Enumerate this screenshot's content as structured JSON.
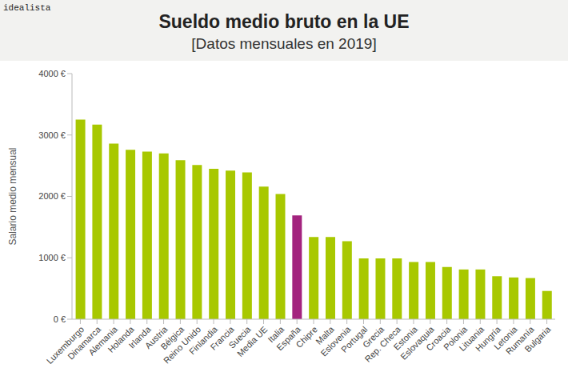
{
  "chart_data": {
    "type": "bar",
    "source": "idealista",
    "title": "Sueldo medio bruto en la UE",
    "subtitle": "[Datos mensuales en 2019]",
    "y_label": "Salario medio mensual",
    "categories": [
      "Luxemburgo",
      "Dinamarca",
      "Alemania",
      "Holanda",
      "Irlanda",
      "Austria",
      "Bélgica",
      "Reino Unido",
      "Finlandia",
      "Francia",
      "Suecia",
      "Media UE",
      "Italia",
      "España",
      "Chipre",
      "Malta",
      "Eslovenia",
      "Portugal",
      "Grecia",
      "Rep. Checa",
      "Estonia",
      "Eslovaquia",
      "Croacia",
      "Polonia",
      "Lituania",
      "Hungría",
      "Letonia",
      "Rumanía",
      "Bulgaria"
    ],
    "values": [
      3250,
      3170,
      2860,
      2760,
      2730,
      2700,
      2590,
      2510,
      2450,
      2420,
      2390,
      2160,
      2040,
      1690,
      1340,
      1340,
      1270,
      990,
      990,
      990,
      930,
      930,
      850,
      810,
      810,
      700,
      680,
      670,
      460
    ],
    "colors": [
      "#a8c800",
      "#a8c800",
      "#a8c800",
      "#a8c800",
      "#a8c800",
      "#a8c800",
      "#a8c800",
      "#a8c800",
      "#a8c800",
      "#a8c800",
      "#a8c800",
      "#a8c800",
      "#a8c800",
      "#a3237e",
      "#a8c800",
      "#a8c800",
      "#a8c800",
      "#a8c800",
      "#a8c800",
      "#a8c800",
      "#a8c800",
      "#a8c800",
      "#a8c800",
      "#a8c800",
      "#a8c800",
      "#a8c800",
      "#a8c800",
      "#a8c800",
      "#a8c800"
    ],
    "ylim": [
      0,
      4000
    ],
    "yticks": [
      {
        "value": 0,
        "label": "0 €"
      },
      {
        "value": 1000,
        "label": "1000 €"
      },
      {
        "value": 2000,
        "label": "2000 €"
      },
      {
        "value": 3000,
        "label": "3000 €"
      },
      {
        "value": 4000,
        "label": "4000 €"
      }
    ],
    "grid": false
  }
}
